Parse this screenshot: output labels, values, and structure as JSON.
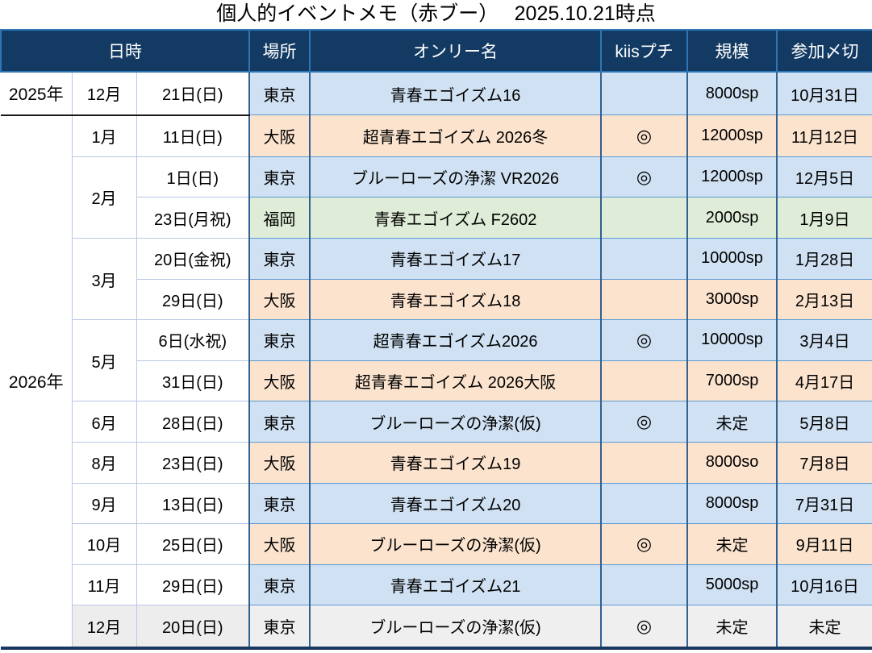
{
  "title": "個人的イベントメモ（赤ブー）　 2025.10.21時点",
  "table": {
    "headers": {
      "datetime": "日時",
      "place": "場所",
      "event": "オンリー名",
      "kiis": "kiisプチ",
      "scale": "規模",
      "deadline": "参加〆切"
    },
    "rows": [
      {
        "year": "2025年",
        "month": "12月",
        "day": "21日(日)",
        "place": "東京",
        "name": "青春エゴイズム16",
        "kiis": "",
        "scale": "8000sp",
        "deadline": "10月31日",
        "color": "blue"
      },
      {
        "year": "2026年",
        "month": "1月",
        "day": "11日(日)",
        "place": "大阪",
        "name": "超青春エゴイズム 2026冬",
        "kiis": "◎",
        "scale": "12000sp",
        "deadline": "11月12日",
        "color": "orange"
      },
      {
        "month": "2月",
        "day": "1日(日)",
        "place": "東京",
        "name": "ブルーローズの浄潔 VR2026",
        "kiis": "◎",
        "scale": "12000sp",
        "deadline": "12月5日",
        "color": "blue"
      },
      {
        "day": "23日(月祝)",
        "place": "福岡",
        "name": "青春エゴイズム F2602",
        "kiis": "",
        "scale": "2000sp",
        "deadline": "1月9日",
        "color": "green"
      },
      {
        "month": "3月",
        "day": "20日(金祝)",
        "place": "東京",
        "name": "青春エゴイズム17",
        "kiis": "",
        "scale": "10000sp",
        "deadline": "1月28日",
        "color": "blue"
      },
      {
        "day": "29日(日)",
        "place": "大阪",
        "name": "青春エゴイズム18",
        "kiis": "",
        "scale": "3000sp",
        "deadline": "2月13日",
        "color": "orange"
      },
      {
        "month": "5月",
        "day": "6日(水祝)",
        "place": "東京",
        "name": "超青春エゴイズム2026",
        "kiis": "◎",
        "scale": "10000sp",
        "deadline": "3月4日",
        "color": "blue"
      },
      {
        "day": "31日(日)",
        "place": "大阪",
        "name": "超青春エゴイズム 2026大阪",
        "kiis": "",
        "scale": "7000sp",
        "deadline": "4月17日",
        "color": "orange"
      },
      {
        "month": "6月",
        "day": "28日(日)",
        "place": "東京",
        "name": "ブルーローズの浄潔(仮)",
        "kiis": "◎",
        "scale": "未定",
        "deadline": "5月8日",
        "color": "blue"
      },
      {
        "month": "8月",
        "day": "23日(日)",
        "place": "大阪",
        "name": "青春エゴイズム19",
        "kiis": "",
        "scale": "8000so",
        "deadline": "7月8日",
        "color": "orange"
      },
      {
        "month": "9月",
        "day": "13日(日)",
        "place": "東京",
        "name": "青春エゴイズム20",
        "kiis": "",
        "scale": "8000sp",
        "deadline": "7月31日",
        "color": "blue"
      },
      {
        "month": "10月",
        "day": "25日(日)",
        "place": "大阪",
        "name": "ブルーローズの浄潔(仮)",
        "kiis": "◎",
        "scale": "未定",
        "deadline": "9月11日",
        "color": "orange"
      },
      {
        "month": "11月",
        "day": "29日(日)",
        "place": "東京",
        "name": "青春エゴイズム21",
        "kiis": "",
        "scale": "5000sp",
        "deadline": "10月16日",
        "color": "blue"
      },
      {
        "month": "12月",
        "day": "20日(日)",
        "place": "東京",
        "name": "ブルーローズの浄潔(仮)",
        "kiis": "◎",
        "scale": "未定",
        "deadline": "未定",
        "color": "gray",
        "date_bg": "gray_date"
      }
    ]
  },
  "palette": {
    "blue": "#CFE1F2",
    "orange": "#FBE3CE",
    "green": "#DFEDD8",
    "gray": "#EFEFEF",
    "gray_date": "#EDEDED",
    "header_bg": "#123A63",
    "header_border": "#2E75B6",
    "grid_dark": "#31618F",
    "grid_mid": "#5B9BD5",
    "grid_light": "#B8C8E4",
    "bottom_bar": "#17375E",
    "group_separator": "#1a1a1a"
  }
}
